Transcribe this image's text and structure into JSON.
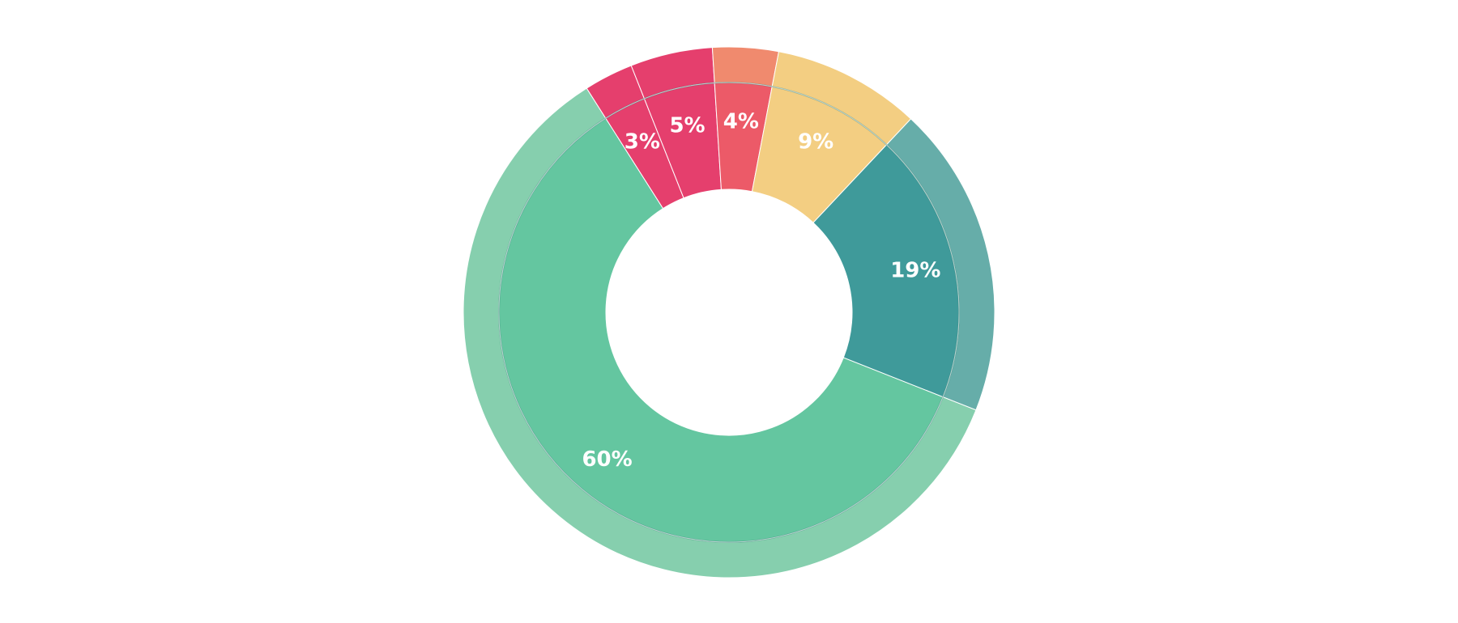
{
  "chart_data": {
    "type": "pie",
    "variant": "donut",
    "title": "",
    "legend": "none",
    "slices": [
      {
        "label": "60%",
        "value": 60,
        "color": "#64c6a0",
        "outer_color": "#86cfae"
      },
      {
        "label": "3%",
        "value": 3,
        "color": "#e53f6d",
        "outer_color": "#e53f6d"
      },
      {
        "label": "5%",
        "value": 5,
        "color": "#e53f6d",
        "outer_color": "#e53f6d"
      },
      {
        "label": "4%",
        "value": 4,
        "color": "#ec5a68",
        "outer_color": "#f08a6e"
      },
      {
        "label": "9%",
        "value": 9,
        "color": "#f3ce82",
        "outer_color": "#f3ce82"
      },
      {
        "label": "19%",
        "value": 19,
        "color": "#3f9a9a",
        "outer_color": "#66ada9"
      }
    ],
    "start_value": 31
  }
}
